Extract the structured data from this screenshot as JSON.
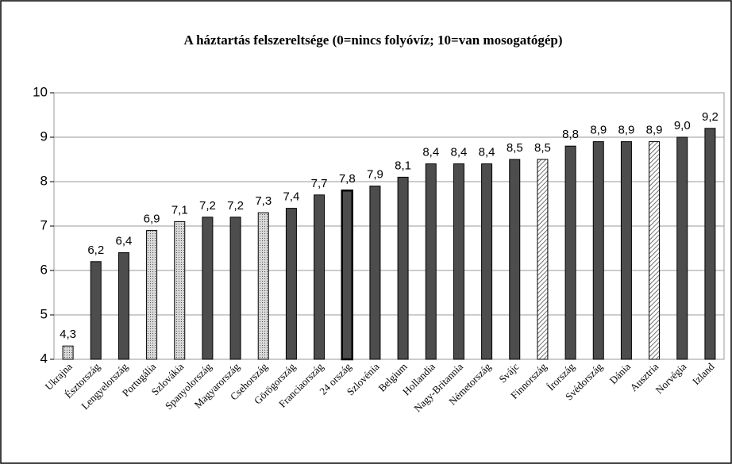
{
  "chart_data": {
    "type": "bar",
    "title": "A háztartás felszereltsége (0=nincs folyóvíz; 10=van mosogatógép)",
    "categories": [
      "Ukrajna",
      "Észtország",
      "Lengyelország",
      "Portugália",
      "Szlovákia",
      "Spanyolország",
      "Magyarország",
      "Csehország",
      "Görögország",
      "Franciaország",
      "24 ország",
      "Szlovénia",
      "Belgium",
      "Hollandia",
      "Nagy-Britannia",
      "Németország",
      "Svájc",
      "Finnország",
      "Írország",
      "Svédország",
      "Dánia",
      "Ausztria",
      "Norvégia",
      "Izland"
    ],
    "values": [
      4.3,
      6.2,
      6.4,
      6.9,
      7.1,
      7.2,
      7.2,
      7.3,
      7.4,
      7.7,
      7.8,
      7.9,
      8.1,
      8.4,
      8.4,
      8.4,
      8.5,
      8.5,
      8.8,
      8.9,
      8.9,
      8.9,
      9.0,
      9.2
    ],
    "value_labels": [
      "4,3",
      "6,2",
      "6,4",
      "6,9",
      "7,1",
      "7,2",
      "7,2",
      "7,3",
      "7,4",
      "7,7",
      "7,8",
      "7,9",
      "8,1",
      "8,4",
      "8,4",
      "8,4",
      "8,5",
      "8,5",
      "8,8",
      "8,9",
      "8,9",
      "8,9",
      "9,0",
      "9,2"
    ],
    "fills": [
      "dotted",
      "solid",
      "solid",
      "dotted",
      "dotted",
      "solid",
      "solid",
      "dotted",
      "solid",
      "solid",
      "outlined",
      "solid",
      "solid",
      "solid",
      "solid",
      "solid",
      "solid",
      "hatched",
      "solid",
      "solid",
      "solid",
      "hatched",
      "solid",
      "solid"
    ],
    "color": "#4d4d4d",
    "ylim": [
      4,
      10
    ],
    "yticks": [
      4,
      5,
      6,
      7,
      8,
      9,
      10
    ],
    "grid": true
  }
}
